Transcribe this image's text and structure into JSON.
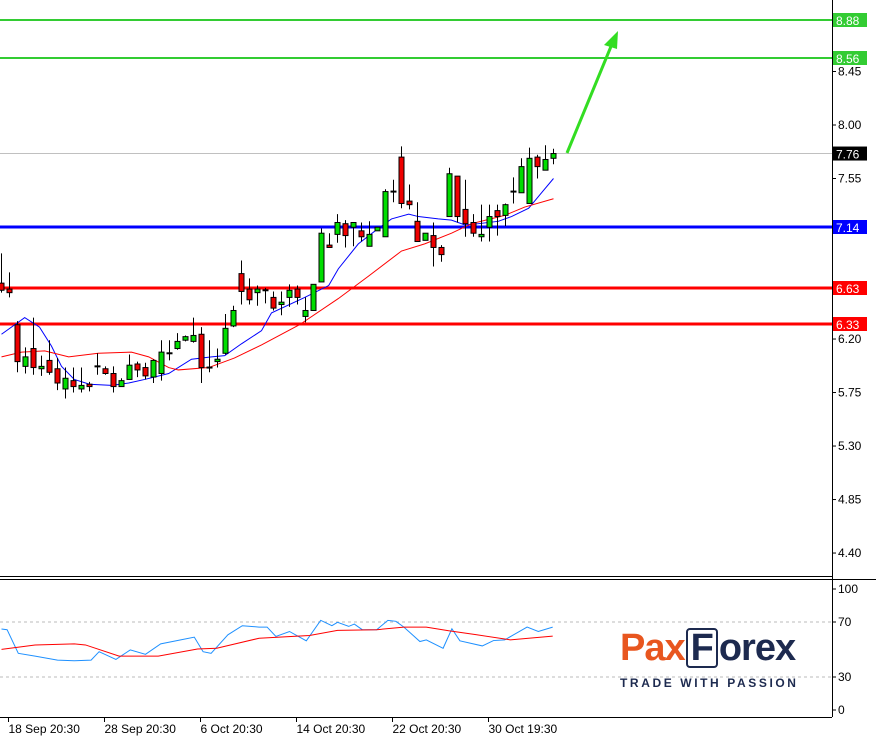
{
  "chart_data": {
    "type": "candlestick",
    "ylim": [
      4.25,
      9.02
    ],
    "y_ticks": [
      "8.45",
      "8.00",
      "7.55",
      "6.20",
      "5.75",
      "5.30",
      "4.85",
      "4.40"
    ],
    "x_tick_labels": [
      "18 Sep 20:30",
      "28 Sep 20:30",
      "6 Oct 20:30",
      "14 Oct 20:30",
      "22 Oct 20:30",
      "30 Oct 19:30"
    ],
    "x_tick_candle_index": [
      1,
      13,
      25,
      37,
      49,
      61
    ],
    "candles_ohlc": [
      [
        6.67,
        6.92,
        6.59,
        6.61
      ],
      [
        6.62,
        6.76,
        6.55,
        6.59
      ],
      [
        6.32,
        6.35,
        5.92,
        6.01
      ],
      [
        5.97,
        6.13,
        5.91,
        6.05
      ],
      [
        6.12,
        6.38,
        5.9,
        5.96
      ],
      [
        5.95,
        6.06,
        5.89,
        5.97
      ],
      [
        6.02,
        6.19,
        5.9,
        5.92
      ],
      [
        5.95,
        6.04,
        5.77,
        5.83
      ],
      [
        5.78,
        5.96,
        5.7,
        5.87
      ],
      [
        5.85,
        5.96,
        5.75,
        5.8
      ],
      [
        5.78,
        5.96,
        5.75,
        5.81
      ],
      [
        5.82,
        5.84,
        5.76,
        5.8
      ],
      [
        5.97,
        6.08,
        5.9,
        5.97
      ],
      [
        5.95,
        5.97,
        5.9,
        5.91
      ],
      [
        5.91,
        5.97,
        5.75,
        5.8
      ],
      [
        5.8,
        5.87,
        5.8,
        5.85
      ],
      [
        5.86,
        6.07,
        5.86,
        5.98
      ],
      [
        5.99,
        6.01,
        5.88,
        5.94
      ],
      [
        5.96,
        6.0,
        5.86,
        5.89
      ],
      [
        5.88,
        6.03,
        5.83,
        6.02
      ],
      [
        5.91,
        6.19,
        5.85,
        6.09
      ],
      [
        6.08,
        6.19,
        6.02,
        6.08
      ],
      [
        6.12,
        6.25,
        6.11,
        6.18
      ],
      [
        6.19,
        6.23,
        6.18,
        6.22
      ],
      [
        6.18,
        6.38,
        6.17,
        6.23
      ],
      [
        6.24,
        6.3,
        5.83,
        5.96
      ],
      [
        5.96,
        6.19,
        5.92,
        5.96
      ],
      [
        6.01,
        6.12,
        5.96,
        6.03
      ],
      [
        6.08,
        6.41,
        6.07,
        6.29
      ],
      [
        6.31,
        6.48,
        6.3,
        6.44
      ],
      [
        6.75,
        6.86,
        6.49,
        6.6
      ],
      [
        6.62,
        6.71,
        6.49,
        6.53
      ],
      [
        6.59,
        6.65,
        6.48,
        6.62
      ],
      [
        6.61,
        6.63,
        6.5,
        6.61
      ],
      [
        6.55,
        6.6,
        6.44,
        6.46
      ],
      [
        6.49,
        6.6,
        6.4,
        6.51
      ],
      [
        6.55,
        6.66,
        6.47,
        6.61
      ],
      [
        6.62,
        6.65,
        6.49,
        6.55
      ],
      [
        6.39,
        6.55,
        6.34,
        6.44
      ],
      [
        6.44,
        6.66,
        6.44,
        6.66
      ],
      [
        6.68,
        7.13,
        6.68,
        7.09
      ],
      [
        6.99,
        7.09,
        6.97,
        6.97
      ],
      [
        7.08,
        7.25,
        7.01,
        7.18
      ],
      [
        7.17,
        7.2,
        6.97,
        7.07
      ],
      [
        7.14,
        7.18,
        6.98,
        7.18
      ],
      [
        7.11,
        7.18,
        7.02,
        7.06
      ],
      [
        6.98,
        7.19,
        6.98,
        7.08
      ],
      [
        7.11,
        7.14,
        7.11,
        7.14
      ],
      [
        7.06,
        7.46,
        7.06,
        7.44
      ],
      [
        7.44,
        7.54,
        7.35,
        7.44
      ],
      [
        7.73,
        7.82,
        7.3,
        7.34
      ],
      [
        7.36,
        7.5,
        7.29,
        7.33
      ],
      [
        7.19,
        7.35,
        7.02,
        7.02
      ],
      [
        7.03,
        7.09,
        7.03,
        7.09
      ],
      [
        7.07,
        7.18,
        6.81,
        6.97
      ],
      [
        6.97,
        6.99,
        6.85,
        6.91
      ],
      [
        7.23,
        7.64,
        7.23,
        7.59
      ],
      [
        7.57,
        7.57,
        7.18,
        7.23
      ],
      [
        7.29,
        7.54,
        7.06,
        7.17
      ],
      [
        7.18,
        7.25,
        7.06,
        7.09
      ],
      [
        7.06,
        7.33,
        7.02,
        7.08
      ],
      [
        7.14,
        7.33,
        7.02,
        7.23
      ],
      [
        7.28,
        7.33,
        7.07,
        7.23
      ],
      [
        7.24,
        7.34,
        7.15,
        7.33
      ],
      [
        7.44,
        7.56,
        7.34,
        7.44
      ],
      [
        7.43,
        7.72,
        7.43,
        7.65
      ],
      [
        7.34,
        7.81,
        7.34,
        7.72
      ],
      [
        7.73,
        7.75,
        7.55,
        7.65
      ],
      [
        7.62,
        7.83,
        7.62,
        7.71
      ],
      [
        7.72,
        7.8,
        7.67,
        7.76
      ]
    ],
    "moving_averages": [
      {
        "color": "#0000ff",
        "points": [
          [
            0,
            6.24
          ],
          [
            2.9,
            6.38
          ],
          [
            4.75,
            6.3
          ],
          [
            6.25,
            6.14
          ],
          [
            7.5,
            5.97
          ],
          [
            9.1,
            5.86
          ],
          [
            11,
            5.82
          ],
          [
            13.75,
            5.81
          ],
          [
            15.9,
            5.83
          ],
          [
            17.9,
            5.86
          ],
          [
            20.9,
            5.91
          ],
          [
            23.75,
            6.03
          ],
          [
            26.25,
            6.05
          ],
          [
            27.9,
            6.06
          ],
          [
            30,
            6.16
          ],
          [
            32.5,
            6.27
          ],
          [
            33.75,
            6.42
          ],
          [
            37.9,
            6.55
          ],
          [
            40.9,
            6.65
          ],
          [
            42.1,
            6.79
          ],
          [
            44.6,
            7.0
          ],
          [
            47.1,
            7.13
          ],
          [
            48.75,
            7.21
          ],
          [
            50.9,
            7.25
          ],
          [
            52.1,
            7.23
          ],
          [
            54.6,
            7.21
          ],
          [
            56.25,
            7.2
          ],
          [
            57.9,
            7.16
          ],
          [
            59.6,
            7.17
          ],
          [
            62.1,
            7.19
          ],
          [
            63.75,
            7.23
          ],
          [
            65.9,
            7.3
          ],
          [
            67.5,
            7.43
          ],
          [
            69,
            7.55
          ]
        ]
      },
      {
        "color": "#ff0000",
        "points": [
          [
            0,
            6.05
          ],
          [
            2.5,
            6.09
          ],
          [
            5.4,
            6.1
          ],
          [
            8.4,
            6.05
          ],
          [
            12.1,
            6.08
          ],
          [
            16.25,
            6.09
          ],
          [
            18.4,
            6.05
          ],
          [
            20.9,
            5.96
          ],
          [
            22.1,
            5.94
          ],
          [
            25.9,
            5.96
          ],
          [
            29.1,
            6.04
          ],
          [
            32.5,
            6.15
          ],
          [
            37.25,
            6.32
          ],
          [
            42.1,
            6.54
          ],
          [
            45.9,
            6.73
          ],
          [
            50,
            6.94
          ],
          [
            52.9,
            7.0
          ],
          [
            56.25,
            7.09
          ],
          [
            58.75,
            7.17
          ],
          [
            62.9,
            7.24
          ],
          [
            65.4,
            7.31
          ],
          [
            69,
            7.38
          ]
        ]
      }
    ],
    "levels": [
      {
        "price": 8.88,
        "label": "8.88",
        "color": "#33cc33"
      },
      {
        "price": 8.56,
        "label": "8.56",
        "color": "#33cc33"
      },
      {
        "price": 7.14,
        "label": "7.14",
        "color": "#0000ff"
      },
      {
        "price": 6.63,
        "label": "6.63",
        "color": "#ff0000"
      },
      {
        "price": 6.33,
        "label": "6.33",
        "color": "#ff0000"
      }
    ],
    "current_price": {
      "price": 7.76,
      "label": "7.76"
    },
    "colors": {
      "bull": "#00dd00",
      "bear": "#ee0000",
      "arrow": "#33dd22"
    },
    "oscillator": {
      "ylim": [
        0,
        100
      ],
      "y_ticks": [
        "100",
        "70",
        "30",
        "0"
      ],
      "dashed_levels": [
        70,
        30
      ],
      "series": [
        {
          "color": "#1e90ff",
          "points": [
            [
              0,
              64.9
            ],
            [
              0.7,
              64.4
            ],
            [
              2.1,
              47.2
            ],
            [
              4.2,
              45.2
            ],
            [
              7,
              42.3
            ],
            [
              9.1,
              41.8
            ],
            [
              11.2,
              42.3
            ],
            [
              12.2,
              48.4
            ],
            [
              14.3,
              42.8
            ],
            [
              16.1,
              49.7
            ],
            [
              18,
              46.5
            ],
            [
              19.9,
              54.1
            ],
            [
              22.4,
              57
            ],
            [
              24.1,
              59
            ],
            [
              25.2,
              48.4
            ],
            [
              26.2,
              47.2
            ],
            [
              28.3,
              60.7
            ],
            [
              30.1,
              67.3
            ],
            [
              32.2,
              66.3
            ],
            [
              33.2,
              66.3
            ],
            [
              34.3,
              59.5
            ],
            [
              36,
              63.1
            ],
            [
              38.1,
              56.3
            ],
            [
              39.9,
              71.2
            ],
            [
              41.3,
              67.3
            ],
            [
              42,
              69.8
            ],
            [
              43.4,
              66.8
            ],
            [
              44.1,
              68.5
            ],
            [
              45.1,
              64.4
            ],
            [
              46.9,
              64.4
            ],
            [
              48.3,
              71.2
            ],
            [
              49.3,
              70.5
            ],
            [
              50.3,
              66.3
            ],
            [
              52.3,
              55.8
            ],
            [
              53.1,
              57
            ],
            [
              55.2,
              50.9
            ],
            [
              56.3,
              65.1
            ],
            [
              57.3,
              56.3
            ],
            [
              60.1,
              52.6
            ],
            [
              61.5,
              56.5
            ],
            [
              62.9,
              57
            ],
            [
              65.7,
              66.3
            ],
            [
              67.1,
              63.1
            ],
            [
              68.9,
              66.3
            ]
          ]
        },
        {
          "color": "#ff0000",
          "points": [
            [
              0,
              50.1
            ],
            [
              4.2,
              53.3
            ],
            [
              9.1,
              54.1
            ],
            [
              10.5,
              53.3
            ],
            [
              14.7,
              45.2
            ],
            [
              19.6,
              45.2
            ],
            [
              24.5,
              50.4
            ],
            [
              26.9,
              50.9
            ],
            [
              32.2,
              58.2
            ],
            [
              38.5,
              60.2
            ],
            [
              42,
              63.9
            ],
            [
              46.9,
              64.4
            ],
            [
              50.3,
              66.3
            ],
            [
              53.1,
              66.3
            ],
            [
              55.9,
              63.6
            ],
            [
              59.4,
              60.7
            ],
            [
              63.6,
              57
            ],
            [
              68.9,
              59.7
            ]
          ]
        }
      ]
    }
  },
  "logo": {
    "brand": "PaxForex",
    "pax": "Pax",
    "f": "F",
    "orex": "orex",
    "tagline": "TRADE WITH PASSION"
  }
}
